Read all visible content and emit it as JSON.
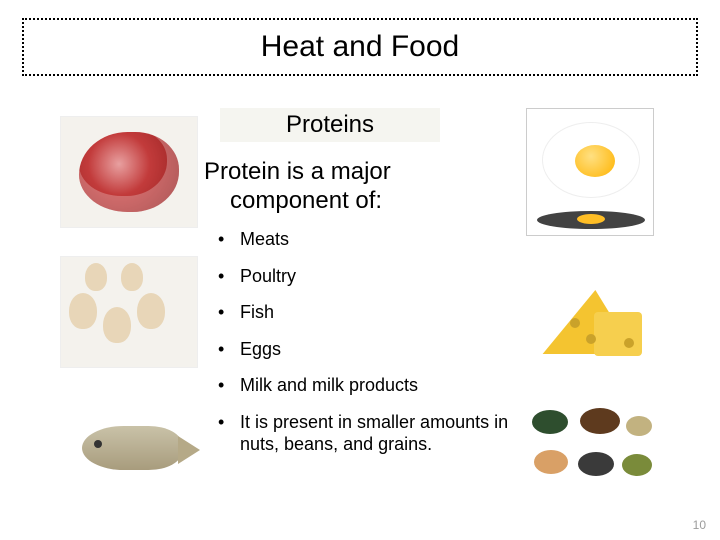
{
  "title": "Heat and Food",
  "subtitle": "Proteins",
  "intro": {
    "line1": "Protein is a major",
    "line2": "component of:"
  },
  "bullets": [
    "Meats",
    "Poultry",
    "Fish",
    "Eggs",
    "Milk and milk products",
    "It is present in smaller amounts in nuts, beans, and grains."
  ],
  "page_number": "10",
  "colors": {
    "title_border": "#000000",
    "subtitle_bg": "#f5f5f0",
    "text": "#000000",
    "page_num": "#9c9c9c",
    "background": "#ffffff"
  },
  "images": {
    "left": [
      "steak",
      "poultry",
      "fish"
    ],
    "right": [
      "fried-egg",
      "cheese",
      "nuts-grains"
    ]
  }
}
